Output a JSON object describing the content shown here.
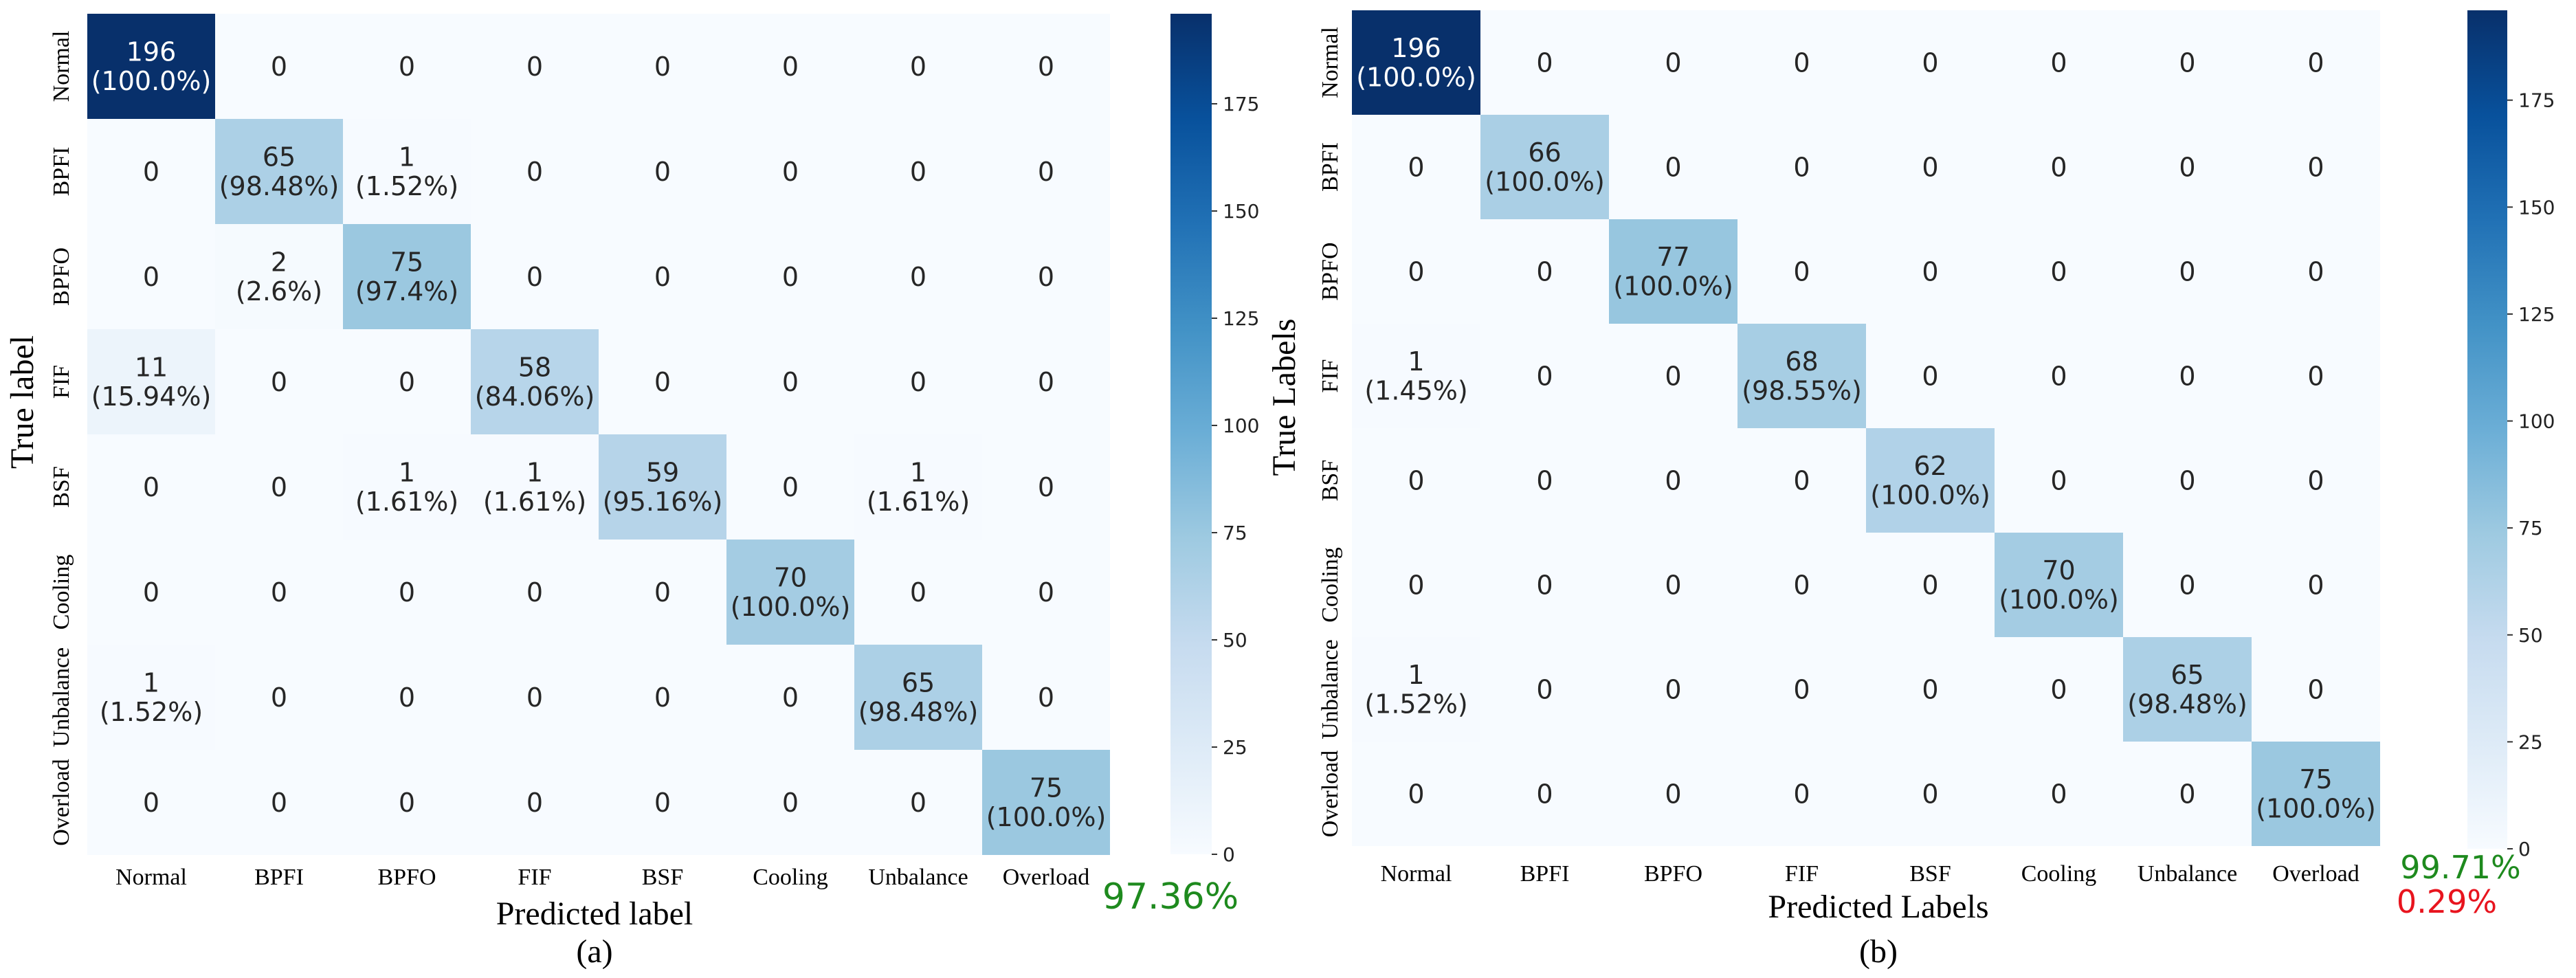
{
  "chart_data": [
    {
      "type": "heatmap",
      "panel_label": "(a)",
      "title": "",
      "xlabel": "Predicted label",
      "ylabel": "True label",
      "classes": [
        "Normal",
        "BPFI",
        "BPFO",
        "FIF",
        "BSF",
        "Cooling",
        "Unbalance",
        "Overload"
      ],
      "matrix": [
        [
          196,
          0,
          0,
          0,
          0,
          0,
          0,
          0
        ],
        [
          0,
          65,
          1,
          0,
          0,
          0,
          0,
          0
        ],
        [
          0,
          2,
          75,
          0,
          0,
          0,
          0,
          0
        ],
        [
          11,
          0,
          0,
          58,
          0,
          0,
          0,
          0
        ],
        [
          0,
          0,
          1,
          1,
          59,
          0,
          1,
          0
        ],
        [
          0,
          0,
          0,
          0,
          0,
          70,
          0,
          0
        ],
        [
          1,
          0,
          0,
          0,
          0,
          0,
          65,
          0
        ],
        [
          0,
          0,
          0,
          0,
          0,
          0,
          0,
          75
        ]
      ],
      "cell_labels": [
        [
          "196\n(100.0%)",
          "0",
          "0",
          "0",
          "0",
          "0",
          "0",
          "0"
        ],
        [
          "0",
          "65\n(98.48%)",
          "1\n(1.52%)",
          "0",
          "0",
          "0",
          "0",
          "0"
        ],
        [
          "0",
          "2\n(2.6%)",
          "75\n(97.4%)",
          "0",
          "0",
          "0",
          "0",
          "0"
        ],
        [
          "11\n(15.94%)",
          "0",
          "0",
          "58\n(84.06%)",
          "0",
          "0",
          "0",
          "0"
        ],
        [
          "0",
          "0",
          "1\n(1.61%)",
          "1\n(1.61%)",
          "59\n(95.16%)",
          "0",
          "1\n(1.61%)",
          "0"
        ],
        [
          "0",
          "0",
          "0",
          "0",
          "0",
          "70\n(100.0%)",
          "0",
          "0"
        ],
        [
          "1\n(1.52%)",
          "0",
          "0",
          "0",
          "0",
          "0",
          "65\n(98.48%)",
          "0"
        ],
        [
          "0",
          "0",
          "0",
          "0",
          "0",
          "0",
          "0",
          "75\n(100.0%)"
        ]
      ],
      "colorbar": {
        "range": [
          0,
          196
        ],
        "ticks": [
          0,
          25,
          50,
          75,
          100,
          125,
          150,
          175
        ]
      },
      "accuracy": "97.36%",
      "error": ""
    },
    {
      "type": "heatmap",
      "panel_label": "(b)",
      "title": "",
      "xlabel": "Predicted Labels",
      "ylabel": "True Labels",
      "classes": [
        "Normal",
        "BPFI",
        "BPFO",
        "FIF",
        "BSF",
        "Cooling",
        "Unbalance",
        "Overload"
      ],
      "matrix": [
        [
          196,
          0,
          0,
          0,
          0,
          0,
          0,
          0
        ],
        [
          0,
          66,
          0,
          0,
          0,
          0,
          0,
          0
        ],
        [
          0,
          0,
          77,
          0,
          0,
          0,
          0,
          0
        ],
        [
          1,
          0,
          0,
          68,
          0,
          0,
          0,
          0
        ],
        [
          0,
          0,
          0,
          0,
          62,
          0,
          0,
          0
        ],
        [
          0,
          0,
          0,
          0,
          0,
          70,
          0,
          0
        ],
        [
          1,
          0,
          0,
          0,
          0,
          0,
          65,
          0
        ],
        [
          0,
          0,
          0,
          0,
          0,
          0,
          0,
          75
        ]
      ],
      "cell_labels": [
        [
          "196\n(100.0%)",
          "0",
          "0",
          "0",
          "0",
          "0",
          "0",
          "0"
        ],
        [
          "0",
          "66\n(100.0%)",
          "0",
          "0",
          "0",
          "0",
          "0",
          "0"
        ],
        [
          "0",
          "0",
          "77\n(100.0%)",
          "0",
          "0",
          "0",
          "0",
          "0"
        ],
        [
          "1\n(1.45%)",
          "0",
          "0",
          "68\n(98.55%)",
          "0",
          "0",
          "0",
          "0"
        ],
        [
          "0",
          "0",
          "0",
          "0",
          "62\n(100.0%)",
          "0",
          "0",
          "0"
        ],
        [
          "0",
          "0",
          "0",
          "0",
          "0",
          "70\n(100.0%)",
          "0",
          "0"
        ],
        [
          "1\n(1.52%)",
          "0",
          "0",
          "0",
          "0",
          "0",
          "65\n(98.48%)",
          "0"
        ],
        [
          "0",
          "0",
          "0",
          "0",
          "0",
          "0",
          "0",
          "75\n(100.0%)"
        ]
      ],
      "colorbar": {
        "range": [
          0,
          196
        ],
        "ticks": [
          0,
          25,
          50,
          75,
          100,
          125,
          150,
          175
        ]
      },
      "accuracy": "99.71%",
      "error": "0.29%"
    }
  ],
  "colors": {
    "accuracy": "#1e8a1e",
    "error": "#e8141e",
    "text_dark": "#262626",
    "text_light": "#ffffff"
  }
}
